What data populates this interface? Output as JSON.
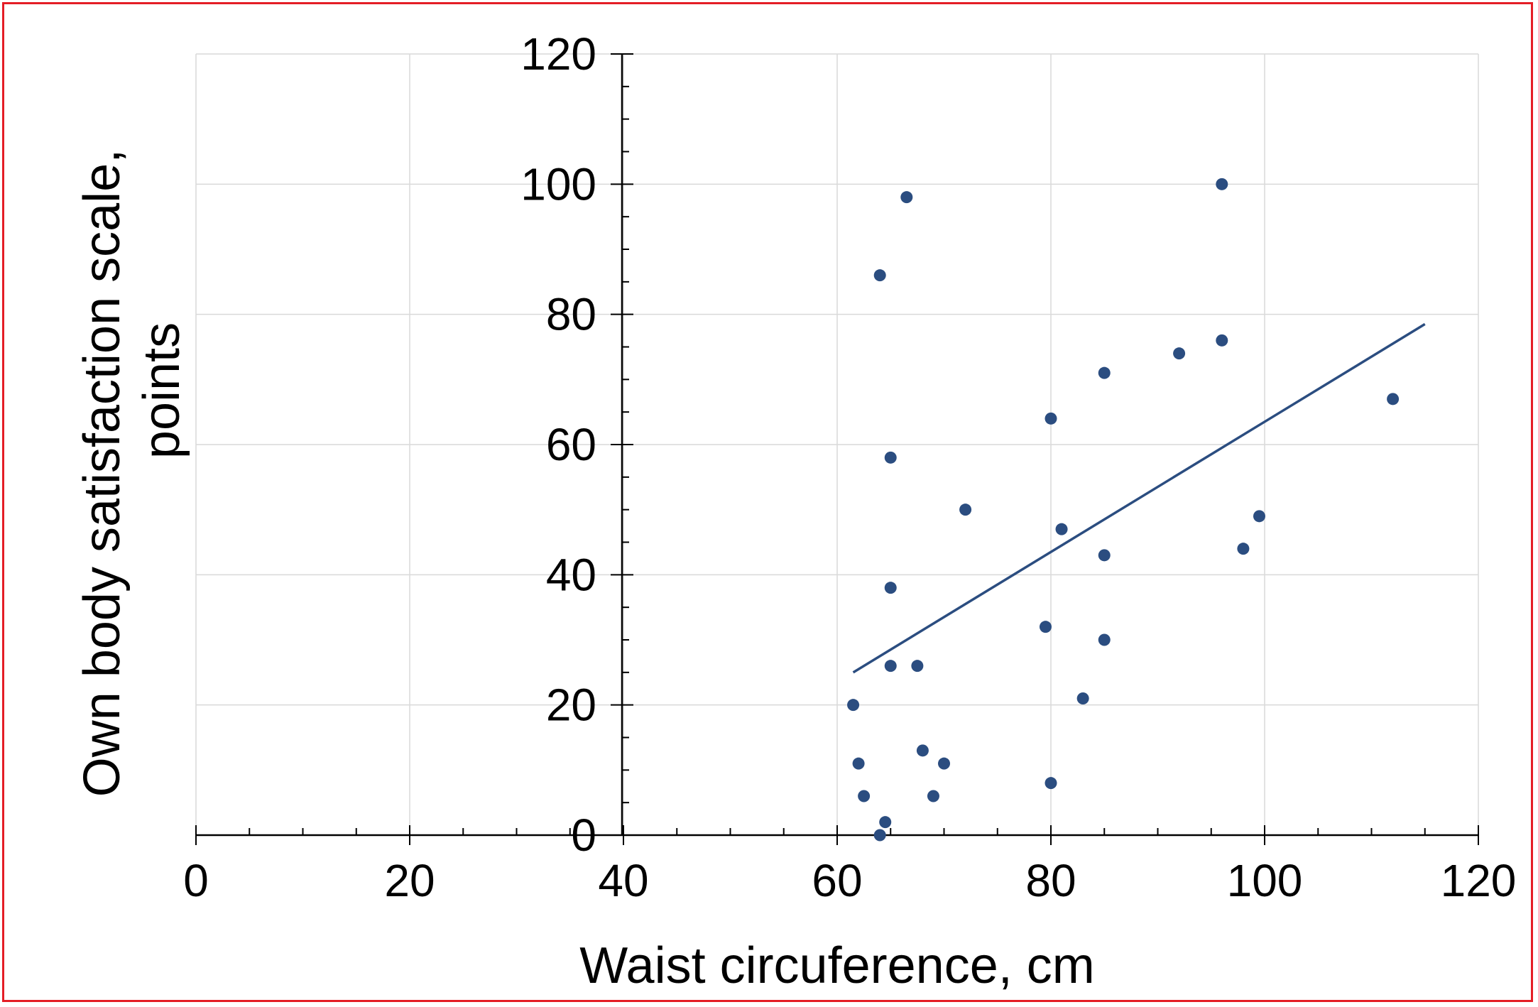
{
  "chart_data": {
    "type": "scatter",
    "title": "",
    "xlabel": "Waist circuference,  cm",
    "ylabel_lines": [
      "Own body satisfaction scale,",
      "points"
    ],
    "xlim": [
      0,
      120
    ],
    "ylim": [
      0,
      120
    ],
    "x_ticks": [
      0,
      20,
      40,
      60,
      80,
      100,
      120
    ],
    "y_ticks": [
      0,
      20,
      40,
      60,
      80,
      100,
      120
    ],
    "grid": true,
    "point_color": "#2b4d80",
    "line_color": "#2b4d80",
    "grid_color": "#d9d9d9",
    "points": [
      {
        "x": 61.5,
        "y": 20
      },
      {
        "x": 62,
        "y": 11
      },
      {
        "x": 62.5,
        "y": 6
      },
      {
        "x": 64,
        "y": 0
      },
      {
        "x": 64,
        "y": 86
      },
      {
        "x": 64.5,
        "y": 2
      },
      {
        "x": 65,
        "y": 58
      },
      {
        "x": 65,
        "y": 38
      },
      {
        "x": 65,
        "y": 26
      },
      {
        "x": 66.5,
        "y": 98
      },
      {
        "x": 67.5,
        "y": 26
      },
      {
        "x": 68,
        "y": 13
      },
      {
        "x": 69,
        "y": 6
      },
      {
        "x": 70,
        "y": 11
      },
      {
        "x": 72,
        "y": 50
      },
      {
        "x": 79.5,
        "y": 32
      },
      {
        "x": 80,
        "y": 64
      },
      {
        "x": 80,
        "y": 8
      },
      {
        "x": 81,
        "y": 47
      },
      {
        "x": 83,
        "y": 21
      },
      {
        "x": 85,
        "y": 71
      },
      {
        "x": 85,
        "y": 43
      },
      {
        "x": 85,
        "y": 30
      },
      {
        "x": 92,
        "y": 74
      },
      {
        "x": 96,
        "y": 100
      },
      {
        "x": 96,
        "y": 76
      },
      {
        "x": 98,
        "y": 44
      },
      {
        "x": 99.5,
        "y": 49
      },
      {
        "x": 112,
        "y": 67
      }
    ],
    "trendline": {
      "x": [
        61.5,
        115
      ],
      "y": [
        25,
        78.5
      ]
    }
  }
}
